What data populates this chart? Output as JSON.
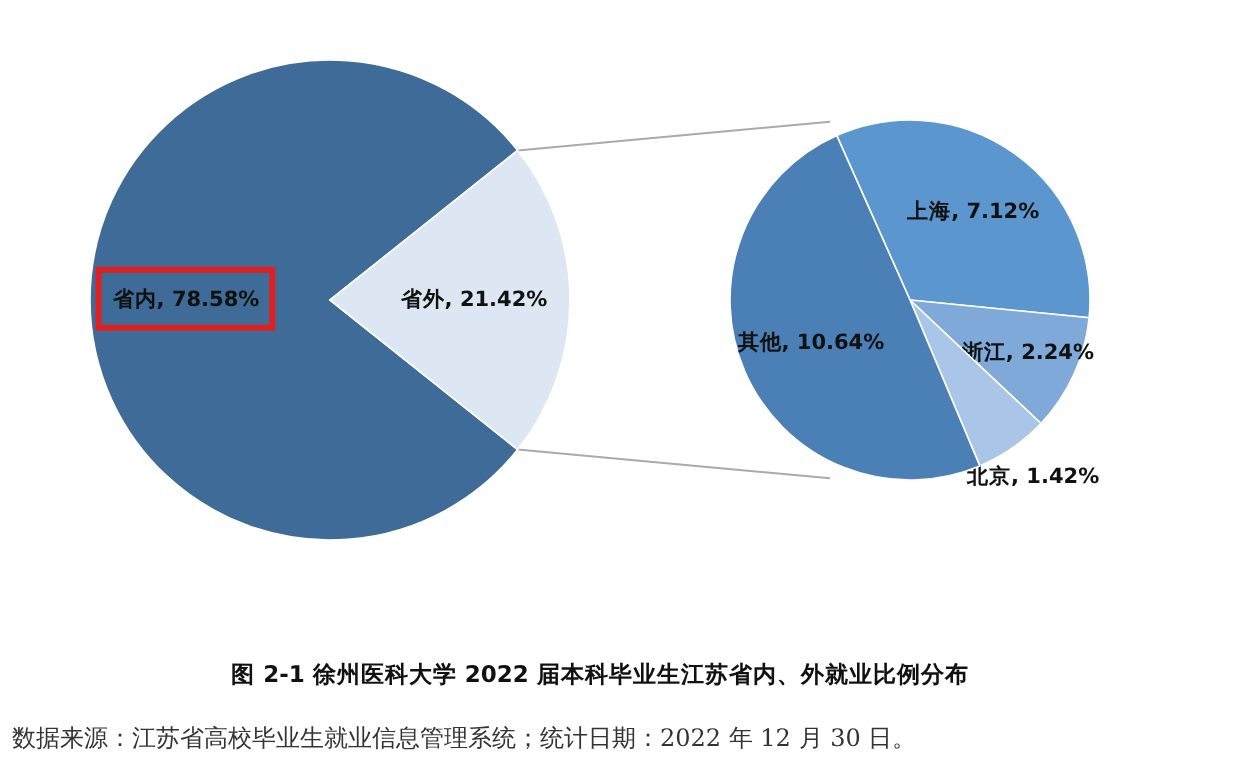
{
  "chart_data": [
    {
      "type": "pie",
      "title": "图 2-1 徐州医科大学 2022 届本科毕业生江苏省内、外就业比例分布",
      "annotations": [
        "数据来源：江苏省高校毕业生就业信息管理系统；统计日期：2022 年 12 月 30 日。"
      ],
      "categories": [
        "省内",
        "省外"
      ],
      "values": [
        78.58,
        21.42
      ],
      "value_labels": [
        "78.58%",
        "21.42%"
      ],
      "colors": [
        "#3e6b97",
        "#dde7f3"
      ]
    },
    {
      "type": "pie",
      "categories": [
        "上海",
        "浙江",
        "北京",
        "其他"
      ],
      "values": [
        7.12,
        2.24,
        1.42,
        10.64
      ],
      "value_labels": [
        "7.12%",
        "2.24%",
        "1.42%",
        "10.64%"
      ],
      "colors": [
        "#5b96cf",
        "#7ea9d9",
        "#a9c5e7",
        "#4b80b6"
      ]
    }
  ]
}
